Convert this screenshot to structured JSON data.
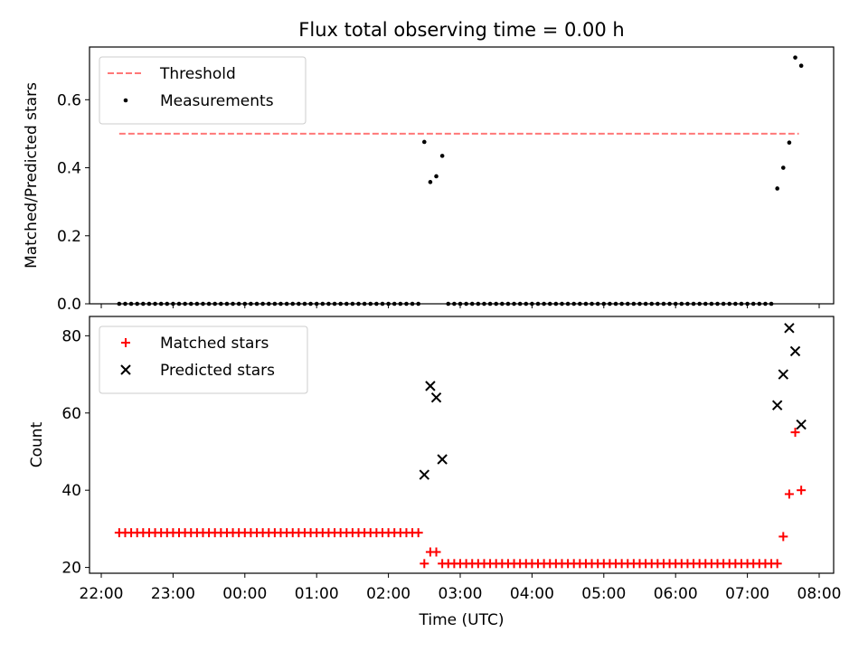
{
  "chart_data": [
    {
      "type": "scatter",
      "title": "Flux total observing time = 0.00 h",
      "xlabel": "",
      "ylabel": "Matched/Predicted stars",
      "ylim": [
        0,
        0.755
      ],
      "yticks": [
        0.0,
        0.2,
        0.4,
        0.6
      ],
      "ytick_labels": [
        "0.0",
        "0.2",
        "0.4",
        "0.6"
      ],
      "legend_position": "top-left",
      "series": [
        {
          "name": "Threshold",
          "style": "dashed-line",
          "color": "#ff7777",
          "points": [
            [
              "22:15",
              0.5
            ],
            [
              "07:43",
              0.5
            ]
          ]
        },
        {
          "name": "Measurements",
          "style": "dot",
          "color": "#000000",
          "segments": [
            {
              "start": "22:15",
              "end": "02:25",
              "step_min": 5,
              "value": 0.0
            },
            {
              "start": "02:50",
              "end": "07:20",
              "step_min": 5,
              "value": 0.0
            }
          ],
          "points": [
            [
              "02:30",
              0.476
            ],
            [
              "02:35",
              0.358
            ],
            [
              "02:40",
              0.375
            ],
            [
              "02:45",
              0.435
            ],
            [
              "07:25",
              0.339
            ],
            [
              "07:30",
              0.4
            ],
            [
              "07:35",
              0.474
            ],
            [
              "07:40",
              0.724
            ],
            [
              "07:45",
              0.7
            ]
          ]
        }
      ]
    },
    {
      "type": "scatter",
      "title": "",
      "xlabel": "Time (UTC)",
      "ylabel": "Count",
      "ylim": [
        18.5,
        85
      ],
      "yticks": [
        20,
        40,
        60,
        80
      ],
      "ytick_labels": [
        "20",
        "40",
        "60",
        "80"
      ],
      "xtick_labels": [
        "22:00",
        "23:00",
        "00:00",
        "01:00",
        "02:00",
        "03:00",
        "04:00",
        "05:00",
        "06:00",
        "07:00",
        "08:00"
      ],
      "legend_position": "top-left",
      "series": [
        {
          "name": "Matched stars",
          "style": "plus",
          "color": "#ff0000",
          "segments": [
            {
              "start": "22:15",
              "end": "02:25",
              "step_min": 5,
              "value": 29
            },
            {
              "start": "02:50",
              "end": "07:20",
              "step_min": 5,
              "value": 21
            }
          ],
          "points": [
            [
              "02:30",
              21
            ],
            [
              "02:35",
              24
            ],
            [
              "02:40",
              24
            ],
            [
              "02:45",
              21
            ],
            [
              "07:25",
              21
            ],
            [
              "07:30",
              28
            ],
            [
              "07:35",
              39
            ],
            [
              "07:40",
              55
            ],
            [
              "07:45",
              40
            ]
          ]
        },
        {
          "name": "Predicted stars",
          "style": "x",
          "color": "#000000",
          "points": [
            [
              "02:30",
              44
            ],
            [
              "02:35",
              67
            ],
            [
              "02:40",
              64
            ],
            [
              "02:45",
              48
            ],
            [
              "07:25",
              62
            ],
            [
              "07:30",
              70
            ],
            [
              "07:35",
              82
            ],
            [
              "07:40",
              76
            ],
            [
              "07:45",
              57
            ]
          ]
        }
      ]
    }
  ]
}
